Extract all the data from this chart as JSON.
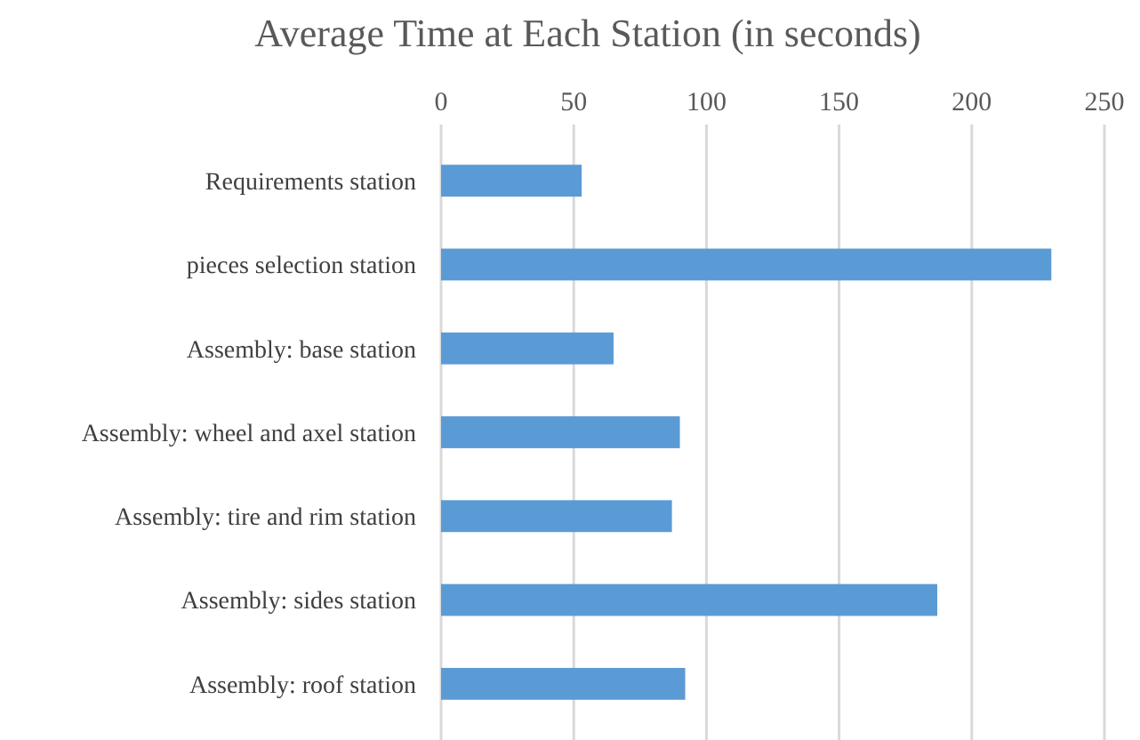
{
  "chart_data": {
    "type": "bar",
    "orientation": "horizontal",
    "title": "Average Time at Each Station (in seconds)",
    "categories": [
      "Requirements station",
      "pieces selection station",
      "Assembly: base station",
      "Assembly: wheel and axel station",
      "Assembly: tire and rim station",
      "Assembly: sides station",
      "Assembly: roof station"
    ],
    "values": [
      53,
      230,
      65,
      90,
      87,
      187,
      92
    ],
    "color": "#5b9bd5",
    "xlim": [
      0,
      250
    ],
    "xticks": [
      0,
      50,
      100,
      150,
      200,
      250
    ],
    "grid": "x"
  }
}
